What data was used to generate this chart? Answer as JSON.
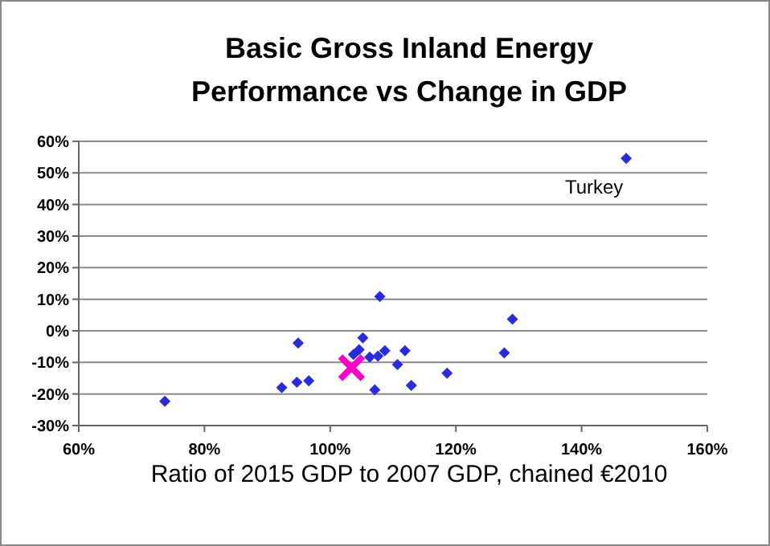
{
  "chart_data": {
    "type": "scatter",
    "title": "Basic Gross Inland Energy Performance vs Change in GDP",
    "xlabel": "Ratio of 2015 GDP to 2007 GDP, chained €2010",
    "xlim": [
      60,
      160
    ],
    "xticks": [
      {
        "value": 60,
        "label": "60%"
      },
      {
        "value": 80,
        "label": "80%"
      },
      {
        "value": 100,
        "label": "100%"
      },
      {
        "value": 120,
        "label": "120%"
      },
      {
        "value": 140,
        "label": "140%"
      },
      {
        "value": 160,
        "label": "160%"
      }
    ],
    "ylim": [
      -30,
      60
    ],
    "yticks": [
      {
        "value": -30,
        "label": "-30%"
      },
      {
        "value": -20,
        "label": "-20%"
      },
      {
        "value": -10,
        "label": "-10%"
      },
      {
        "value": 0,
        "label": "0%"
      },
      {
        "value": 10,
        "label": "10%"
      },
      {
        "value": 20,
        "label": "20%"
      },
      {
        "value": 30,
        "label": "30%"
      },
      {
        "value": 40,
        "label": "40%"
      },
      {
        "value": 50,
        "label": "50%"
      },
      {
        "value": 60,
        "label": "60%"
      }
    ],
    "grid": "y",
    "series": [
      {
        "color": "#2b2bd9",
        "marker": "diamond",
        "x": [
          147.1,
          73.7,
          92.3,
          94.7,
          96.6,
          94.9,
          103.7,
          104.6,
          105.2,
          106.3,
          107.6,
          108.7,
          107.9,
          107.1,
          110.7,
          111.9,
          112.9,
          118.6,
          127.7,
          129.0
        ],
        "values": [
          54.6,
          -22.3,
          -18.0,
          -16.3,
          -15.8,
          -3.9,
          -7.5,
          -6.0,
          -2.2,
          -8.3,
          -8.0,
          -6.3,
          10.9,
          -18.7,
          -10.7,
          -6.3,
          -17.3,
          -13.4,
          -7.0,
          3.7
        ]
      },
      {
        "color": "#ff00cc",
        "marker": "cross",
        "x": [
          103.4
        ],
        "values": [
          -11.7
        ]
      }
    ],
    "annotations": [
      {
        "text": "Turkey",
        "x": 147.1,
        "y": 54.6
      }
    ]
  }
}
